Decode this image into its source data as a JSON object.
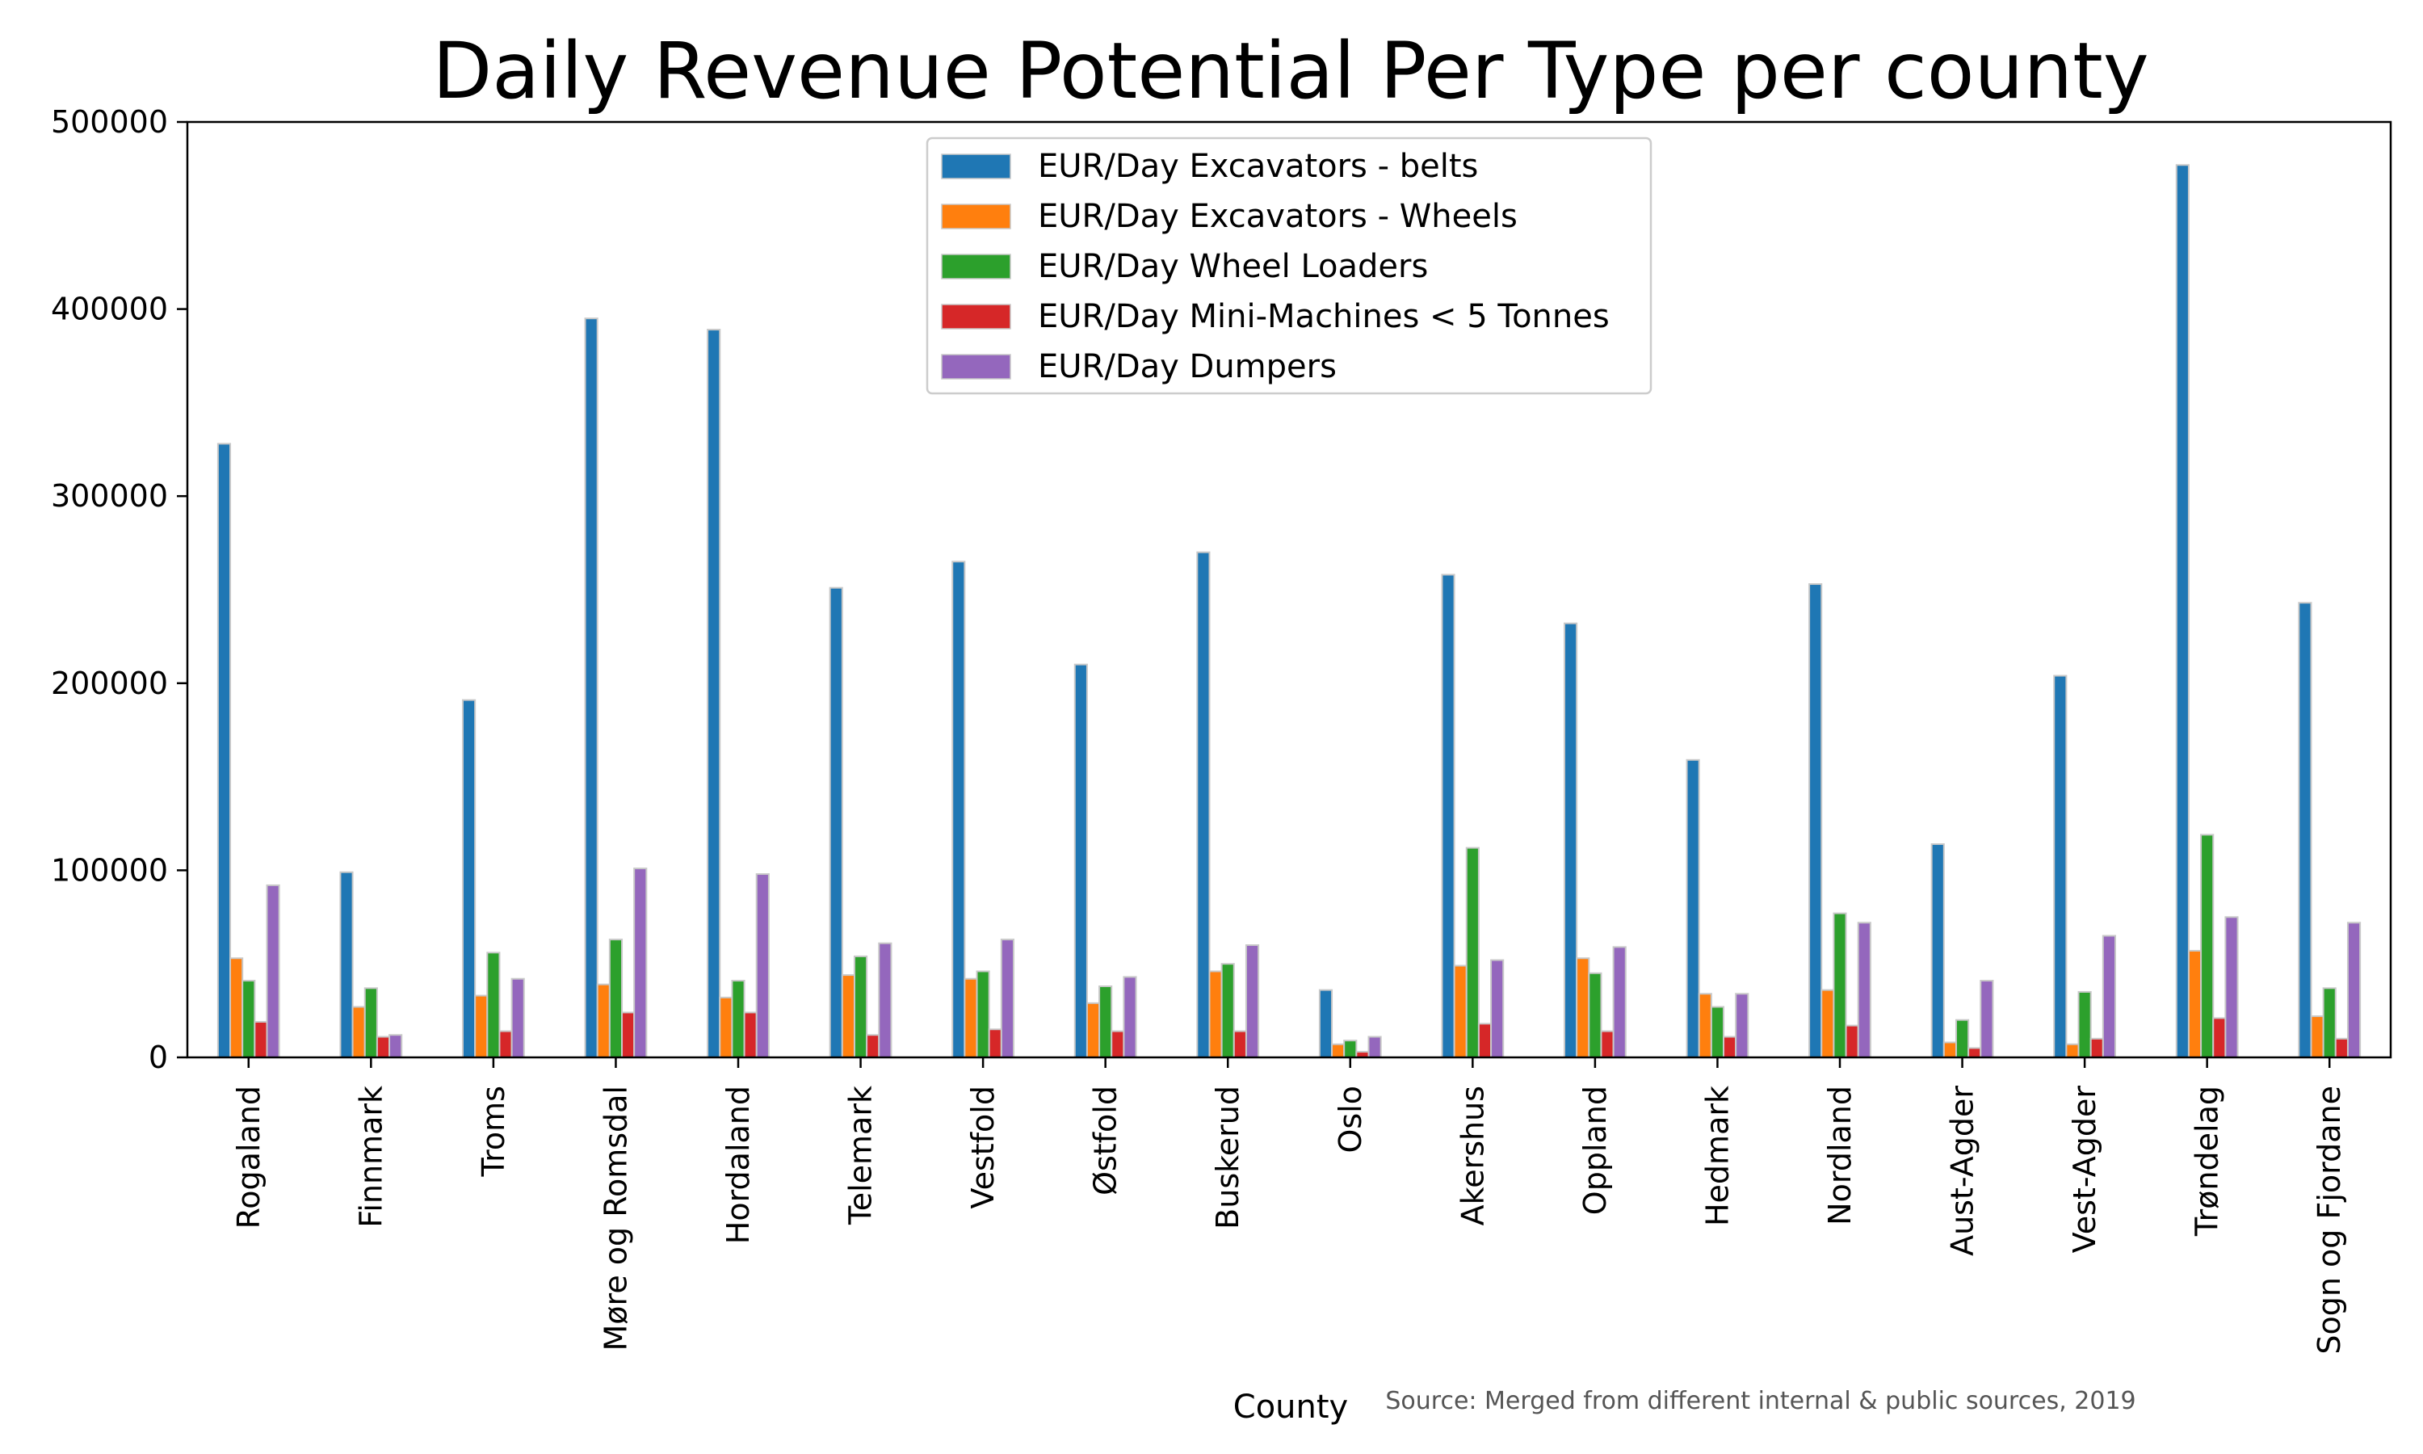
{
  "chart_data": {
    "type": "bar",
    "title": "Daily Revenue Potential Per Type per county",
    "xlabel": "County",
    "ylabel": "",
    "source_note": "Source: Merged from different internal & public sources, 2019",
    "ylim": [
      0,
      500000
    ],
    "yticks": [
      "0",
      "100000",
      "200000",
      "300000",
      "400000",
      "500000"
    ],
    "grid": false,
    "legend_position": "top-center",
    "categories": [
      "Rogaland",
      "Finnmark",
      "Troms",
      "Møre og Romsdal",
      "Hordaland",
      "Telemark",
      "Vestfold",
      "Østfold",
      "Buskerud",
      "Oslo",
      "Akershus",
      "Oppland",
      "Hedmark",
      "Nordland",
      "Aust-Agder",
      "Vest-Agder",
      "Trøndelag",
      "Sogn og Fjordane"
    ],
    "series": [
      {
        "name": "EUR/Day Excavators - belts",
        "color": "#1f77b4",
        "values": [
          328000,
          99000,
          191000,
          395000,
          389000,
          251000,
          265000,
          210000,
          270000,
          36000,
          258000,
          232000,
          159000,
          253000,
          114000,
          204000,
          477000,
          243000
        ]
      },
      {
        "name": "EUR/Day Excavators - Wheels",
        "color": "#ff7f0e",
        "values": [
          53000,
          27000,
          33000,
          39000,
          32000,
          44000,
          42000,
          29000,
          46000,
          7000,
          49000,
          53000,
          34000,
          36000,
          8000,
          7000,
          57000,
          22000
        ]
      },
      {
        "name": "EUR/Day Wheel Loaders",
        "color": "#2ca02c",
        "values": [
          41000,
          37000,
          56000,
          63000,
          41000,
          54000,
          46000,
          38000,
          50000,
          9000,
          112000,
          45000,
          27000,
          77000,
          20000,
          35000,
          119000,
          37000
        ]
      },
      {
        "name": "EUR/Day Mini-Machines < 5 Tonnes",
        "color": "#d62728",
        "values": [
          19000,
          11000,
          14000,
          24000,
          24000,
          12000,
          15000,
          14000,
          14000,
          3000,
          18000,
          14000,
          11000,
          17000,
          5000,
          10000,
          21000,
          10000
        ]
      },
      {
        "name": "EUR/Day Dumpers",
        "color": "#9467bd",
        "values": [
          92000,
          12000,
          42000,
          101000,
          98000,
          61000,
          63000,
          43000,
          60000,
          11000,
          52000,
          59000,
          34000,
          72000,
          41000,
          65000,
          75000,
          72000
        ]
      }
    ]
  }
}
